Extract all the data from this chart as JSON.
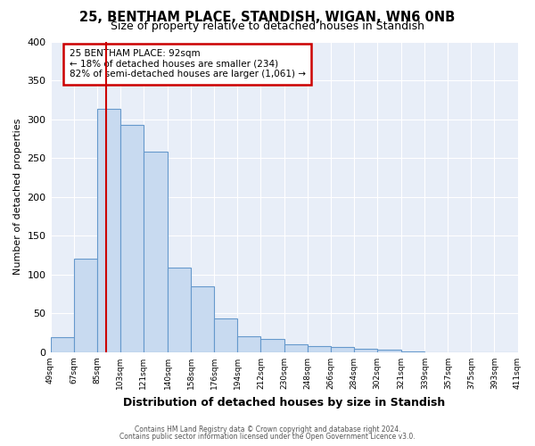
{
  "title": "25, BENTHAM PLACE, STANDISH, WIGAN, WN6 0NB",
  "subtitle": "Size of property relative to detached houses in Standish",
  "xlabel": "Distribution of detached houses by size in Standish",
  "ylabel": "Number of detached properties",
  "bin_labels": [
    "49sqm",
    "67sqm",
    "85sqm",
    "103sqm",
    "121sqm",
    "140sqm",
    "158sqm",
    "176sqm",
    "194sqm",
    "212sqm",
    "230sqm",
    "248sqm",
    "266sqm",
    "284sqm",
    "302sqm",
    "321sqm",
    "339sqm",
    "357sqm",
    "375sqm",
    "393sqm",
    "411sqm"
  ],
  "bar_values": [
    20,
    120,
    313,
    293,
    258,
    109,
    85,
    44,
    21,
    17,
    10,
    8,
    7,
    5,
    3,
    1,
    0,
    0,
    0,
    0
  ],
  "bar_color": "#c8daf0",
  "bar_edge_color": "#6699cc",
  "bin_edges": [
    49,
    67,
    85,
    103,
    121,
    140,
    158,
    176,
    194,
    212,
    230,
    248,
    266,
    284,
    302,
    321,
    339,
    357,
    375,
    393,
    411
  ],
  "ylim": [
    0,
    400
  ],
  "yticks": [
    0,
    50,
    100,
    150,
    200,
    250,
    300,
    350,
    400
  ],
  "annotation_text": "25 BENTHAM PLACE: 92sqm\n← 18% of detached houses are smaller (234)\n82% of semi-detached houses are larger (1,061) →",
  "annotation_box_facecolor": "#ffffff",
  "annotation_box_edgecolor": "#cc0000",
  "footer_line1": "Contains HM Land Registry data © Crown copyright and database right 2024.",
  "footer_line2": "Contains public sector information licensed under the Open Government Licence v3.0.",
  "plot_bg_color": "#e8eef8",
  "fig_bg_color": "#ffffff",
  "vline_color": "#cc0000",
  "vline_x": 92,
  "grid_color": "#ffffff",
  "title_fontsize": 10.5,
  "subtitle_fontsize": 9,
  "ylabel_fontsize": 8,
  "xlabel_fontsize": 9
}
